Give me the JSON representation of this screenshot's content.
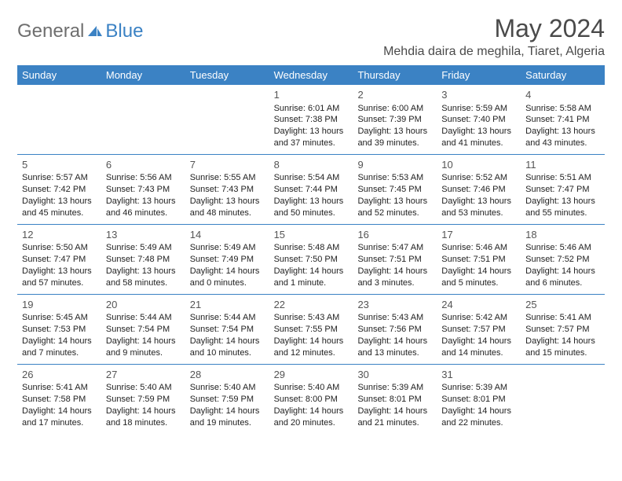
{
  "brand": {
    "text1": "General",
    "text2": "Blue"
  },
  "title": "May 2024",
  "location": "Mehdia daira de meghila, Tiaret, Algeria",
  "colors": {
    "header_bg": "#3b82c4",
    "header_text": "#ffffff",
    "week_border": "#3b82c4",
    "body_text": "#222222",
    "title_text": "#4a4a4a",
    "logo_gray": "#6e6e6e",
    "logo_blue": "#3b82c4",
    "background": "#ffffff"
  },
  "day_names": [
    "Sunday",
    "Monday",
    "Tuesday",
    "Wednesday",
    "Thursday",
    "Friday",
    "Saturday"
  ],
  "weeks": [
    [
      {
        "blank": true
      },
      {
        "blank": true
      },
      {
        "blank": true
      },
      {
        "n": "1",
        "sr": "Sunrise: 6:01 AM",
        "ss": "Sunset: 7:38 PM",
        "d1": "Daylight: 13 hours",
        "d2": "and 37 minutes."
      },
      {
        "n": "2",
        "sr": "Sunrise: 6:00 AM",
        "ss": "Sunset: 7:39 PM",
        "d1": "Daylight: 13 hours",
        "d2": "and 39 minutes."
      },
      {
        "n": "3",
        "sr": "Sunrise: 5:59 AM",
        "ss": "Sunset: 7:40 PM",
        "d1": "Daylight: 13 hours",
        "d2": "and 41 minutes."
      },
      {
        "n": "4",
        "sr": "Sunrise: 5:58 AM",
        "ss": "Sunset: 7:41 PM",
        "d1": "Daylight: 13 hours",
        "d2": "and 43 minutes."
      }
    ],
    [
      {
        "n": "5",
        "sr": "Sunrise: 5:57 AM",
        "ss": "Sunset: 7:42 PM",
        "d1": "Daylight: 13 hours",
        "d2": "and 45 minutes."
      },
      {
        "n": "6",
        "sr": "Sunrise: 5:56 AM",
        "ss": "Sunset: 7:43 PM",
        "d1": "Daylight: 13 hours",
        "d2": "and 46 minutes."
      },
      {
        "n": "7",
        "sr": "Sunrise: 5:55 AM",
        "ss": "Sunset: 7:43 PM",
        "d1": "Daylight: 13 hours",
        "d2": "and 48 minutes."
      },
      {
        "n": "8",
        "sr": "Sunrise: 5:54 AM",
        "ss": "Sunset: 7:44 PM",
        "d1": "Daylight: 13 hours",
        "d2": "and 50 minutes."
      },
      {
        "n": "9",
        "sr": "Sunrise: 5:53 AM",
        "ss": "Sunset: 7:45 PM",
        "d1": "Daylight: 13 hours",
        "d2": "and 52 minutes."
      },
      {
        "n": "10",
        "sr": "Sunrise: 5:52 AM",
        "ss": "Sunset: 7:46 PM",
        "d1": "Daylight: 13 hours",
        "d2": "and 53 minutes."
      },
      {
        "n": "11",
        "sr": "Sunrise: 5:51 AM",
        "ss": "Sunset: 7:47 PM",
        "d1": "Daylight: 13 hours",
        "d2": "and 55 minutes."
      }
    ],
    [
      {
        "n": "12",
        "sr": "Sunrise: 5:50 AM",
        "ss": "Sunset: 7:47 PM",
        "d1": "Daylight: 13 hours",
        "d2": "and 57 minutes."
      },
      {
        "n": "13",
        "sr": "Sunrise: 5:49 AM",
        "ss": "Sunset: 7:48 PM",
        "d1": "Daylight: 13 hours",
        "d2": "and 58 minutes."
      },
      {
        "n": "14",
        "sr": "Sunrise: 5:49 AM",
        "ss": "Sunset: 7:49 PM",
        "d1": "Daylight: 14 hours",
        "d2": "and 0 minutes."
      },
      {
        "n": "15",
        "sr": "Sunrise: 5:48 AM",
        "ss": "Sunset: 7:50 PM",
        "d1": "Daylight: 14 hours",
        "d2": "and 1 minute."
      },
      {
        "n": "16",
        "sr": "Sunrise: 5:47 AM",
        "ss": "Sunset: 7:51 PM",
        "d1": "Daylight: 14 hours",
        "d2": "and 3 minutes."
      },
      {
        "n": "17",
        "sr": "Sunrise: 5:46 AM",
        "ss": "Sunset: 7:51 PM",
        "d1": "Daylight: 14 hours",
        "d2": "and 5 minutes."
      },
      {
        "n": "18",
        "sr": "Sunrise: 5:46 AM",
        "ss": "Sunset: 7:52 PM",
        "d1": "Daylight: 14 hours",
        "d2": "and 6 minutes."
      }
    ],
    [
      {
        "n": "19",
        "sr": "Sunrise: 5:45 AM",
        "ss": "Sunset: 7:53 PM",
        "d1": "Daylight: 14 hours",
        "d2": "and 7 minutes."
      },
      {
        "n": "20",
        "sr": "Sunrise: 5:44 AM",
        "ss": "Sunset: 7:54 PM",
        "d1": "Daylight: 14 hours",
        "d2": "and 9 minutes."
      },
      {
        "n": "21",
        "sr": "Sunrise: 5:44 AM",
        "ss": "Sunset: 7:54 PM",
        "d1": "Daylight: 14 hours",
        "d2": "and 10 minutes."
      },
      {
        "n": "22",
        "sr": "Sunrise: 5:43 AM",
        "ss": "Sunset: 7:55 PM",
        "d1": "Daylight: 14 hours",
        "d2": "and 12 minutes."
      },
      {
        "n": "23",
        "sr": "Sunrise: 5:43 AM",
        "ss": "Sunset: 7:56 PM",
        "d1": "Daylight: 14 hours",
        "d2": "and 13 minutes."
      },
      {
        "n": "24",
        "sr": "Sunrise: 5:42 AM",
        "ss": "Sunset: 7:57 PM",
        "d1": "Daylight: 14 hours",
        "d2": "and 14 minutes."
      },
      {
        "n": "25",
        "sr": "Sunrise: 5:41 AM",
        "ss": "Sunset: 7:57 PM",
        "d1": "Daylight: 14 hours",
        "d2": "and 15 minutes."
      }
    ],
    [
      {
        "n": "26",
        "sr": "Sunrise: 5:41 AM",
        "ss": "Sunset: 7:58 PM",
        "d1": "Daylight: 14 hours",
        "d2": "and 17 minutes."
      },
      {
        "n": "27",
        "sr": "Sunrise: 5:40 AM",
        "ss": "Sunset: 7:59 PM",
        "d1": "Daylight: 14 hours",
        "d2": "and 18 minutes."
      },
      {
        "n": "28",
        "sr": "Sunrise: 5:40 AM",
        "ss": "Sunset: 7:59 PM",
        "d1": "Daylight: 14 hours",
        "d2": "and 19 minutes."
      },
      {
        "n": "29",
        "sr": "Sunrise: 5:40 AM",
        "ss": "Sunset: 8:00 PM",
        "d1": "Daylight: 14 hours",
        "d2": "and 20 minutes."
      },
      {
        "n": "30",
        "sr": "Sunrise: 5:39 AM",
        "ss": "Sunset: 8:01 PM",
        "d1": "Daylight: 14 hours",
        "d2": "and 21 minutes."
      },
      {
        "n": "31",
        "sr": "Sunrise: 5:39 AM",
        "ss": "Sunset: 8:01 PM",
        "d1": "Daylight: 14 hours",
        "d2": "and 22 minutes."
      },
      {
        "blank": true
      }
    ]
  ]
}
